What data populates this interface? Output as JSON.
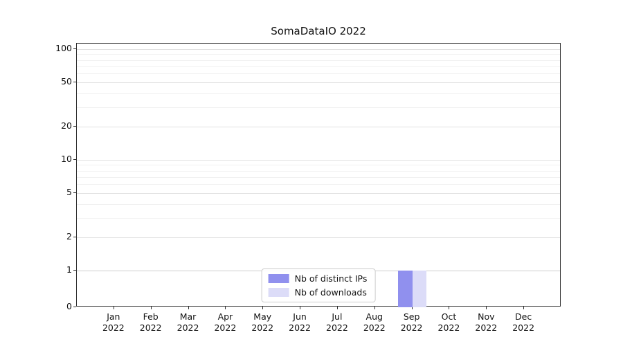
{
  "figure": {
    "background": "#ffffff"
  },
  "chart_data": {
    "type": "bar",
    "title": "SomaDataIO 2022",
    "categories": [
      "Jan 2022",
      "Feb 2022",
      "Mar 2022",
      "Apr 2022",
      "May 2022",
      "Jun 2022",
      "Jul 2022",
      "Aug 2022",
      "Sep 2022",
      "Oct 2022",
      "Nov 2022",
      "Dec 2022"
    ],
    "series": [
      {
        "name": "Nb of distinct IPs",
        "color": "#9090ee",
        "values": [
          0,
          0,
          0,
          0,
          0,
          0,
          0,
          0,
          1,
          0,
          0,
          0
        ]
      },
      {
        "name": "Nb of downloads",
        "color": "#dcdcf8",
        "values": [
          0,
          0,
          0,
          0,
          0,
          0,
          0,
          0,
          1,
          0,
          0,
          0
        ]
      }
    ],
    "xlabel": "",
    "ylabel": "",
    "yscale": "symlog",
    "yticks": [
      0,
      1,
      2,
      5,
      10,
      20,
      50,
      100
    ],
    "minor_grid_values": [
      3,
      4,
      6,
      7,
      8,
      9,
      30,
      40,
      60,
      70,
      80,
      90
    ],
    "ylim": [
      0,
      112
    ],
    "grid": true,
    "legend_position": "lower center",
    "grid_color_major": "#e0e0e0",
    "grid_color_minor": "#f1f1f1",
    "grid_color_unit": "#cccccc"
  }
}
